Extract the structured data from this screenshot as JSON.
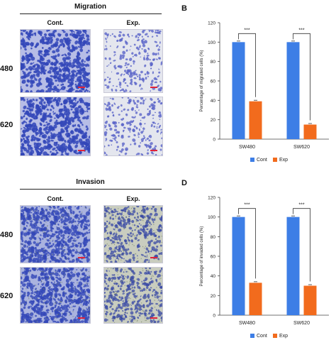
{
  "migration": {
    "header": "Migration",
    "cond_left": "Cont.",
    "cond_right": "Exp.",
    "row_labels": [
      "480",
      "620"
    ]
  },
  "invasion": {
    "header": "Invasion",
    "cond_left": "Cont.",
    "cond_right": "Exp.",
    "row_labels": [
      "480",
      "620"
    ]
  },
  "colors": {
    "cont": "#3d7ee6",
    "exp": "#f26b1d",
    "stain_dense": "#3347b8",
    "stain_light": "#5a64c8",
    "membrane_blue": "#c4c8ea",
    "membrane_gray": "#cfd3c8"
  },
  "chart_data": [
    {
      "panel": "B",
      "type": "bar",
      "categories": [
        "SW480",
        "SW620"
      ],
      "series": [
        {
          "name": "Cont",
          "values": [
            100,
            100
          ]
        },
        {
          "name": "Exp",
          "values": [
            39,
            15
          ]
        }
      ],
      "ylabel": "Percentage of migrated cells (%)",
      "ylim": [
        0,
        120
      ],
      "yticks": [
        0,
        20,
        40,
        60,
        80,
        100,
        120
      ],
      "annotations": [
        "***",
        "***"
      ],
      "legend": "bottom"
    },
    {
      "panel": "D",
      "type": "bar",
      "categories": [
        "SW480",
        "SW620"
      ],
      "series": [
        {
          "name": "Cont",
          "values": [
            100,
            100
          ]
        },
        {
          "name": "Exp",
          "values": [
            33,
            30
          ]
        }
      ],
      "ylabel": "Percentage of invaded cells (%)",
      "ylim": [
        0,
        120
      ],
      "yticks": [
        0,
        20,
        40,
        60,
        80,
        100,
        120
      ],
      "annotations": [
        "***",
        "***"
      ],
      "legend": "bottom"
    }
  ]
}
